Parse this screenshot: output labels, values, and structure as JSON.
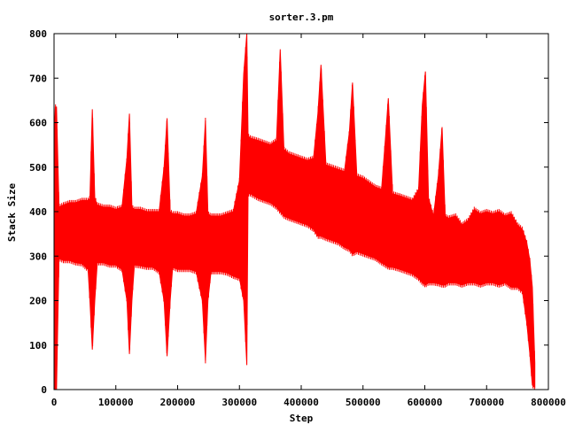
{
  "chart_data": {
    "type": "area",
    "title": "sorter.3.pm",
    "xlabel": "Step",
    "ylabel": "Stack Size",
    "xlim": [
      0,
      800000
    ],
    "ylim": [
      0,
      800
    ],
    "xticks": [
      0,
      100000,
      200000,
      300000,
      400000,
      500000,
      600000,
      700000,
      800000
    ],
    "yticks": [
      0,
      100,
      200,
      300,
      400,
      500,
      600,
      700,
      800
    ],
    "grid": false,
    "legend": "none",
    "color": "#ff0000",
    "series": [
      {
        "x": [
          0,
          2000,
          4000,
          8000,
          15000,
          25000,
          35000,
          45000,
          55000,
          58000,
          62000,
          66000,
          70000,
          80000,
          90000,
          100000,
          110000,
          118000,
          122000,
          126000,
          130000,
          140000,
          150000,
          160000,
          170000,
          178000,
          183000,
          188000,
          192000,
          200000,
          210000,
          220000,
          230000,
          240000,
          245000,
          249000,
          254000,
          260000,
          270000,
          280000,
          290000,
          300000,
          307000,
          312000,
          314000,
          318000,
          330000,
          340000,
          350000,
          360000,
          366000,
          372000,
          380000,
          390000,
          400000,
          410000,
          420000,
          427000,
          432000,
          440000,
          450000,
          460000,
          470000,
          478000,
          483000,
          490000,
          500000,
          510000,
          520000,
          530000,
          536000,
          541000,
          548000,
          560000,
          570000,
          580000,
          590000,
          596000,
          601000,
          606000,
          614000,
          622000,
          628000,
          633000,
          638000,
          650000,
          660000,
          670000,
          680000,
          690000,
          700000,
          710000,
          720000,
          730000,
          740000,
          750000,
          758000,
          765000,
          770000,
          774000,
          778000
        ],
        "min": [
          0,
          0,
          0,
          295,
          290,
          290,
          285,
          283,
          270,
          200,
          90,
          200,
          285,
          285,
          280,
          280,
          270,
          200,
          80,
          200,
          280,
          278,
          275,
          275,
          265,
          200,
          75,
          200,
          275,
          270,
          270,
          270,
          265,
          200,
          65,
          200,
          265,
          265,
          265,
          262,
          255,
          250,
          200,
          55,
          440,
          440,
          430,
          425,
          420,
          410,
          400,
          390,
          385,
          380,
          375,
          370,
          360,
          345,
          345,
          340,
          335,
          330,
          320,
          315,
          305,
          310,
          305,
          300,
          295,
          285,
          280,
          275,
          275,
          270,
          265,
          260,
          250,
          240,
          235,
          240,
          240,
          238,
          235,
          235,
          240,
          240,
          235,
          240,
          240,
          235,
          240,
          240,
          235,
          240,
          230,
          230,
          220,
          150,
          80,
          10,
          5
        ],
        "max": [
          555,
          635,
          635,
          410,
          415,
          420,
          420,
          425,
          425,
          430,
          630,
          430,
          415,
          410,
          410,
          405,
          410,
          520,
          620,
          410,
          405,
          405,
          400,
          400,
          400,
          500,
          610,
          400,
          395,
          395,
          390,
          390,
          395,
          480,
          605,
          395,
          390,
          390,
          390,
          395,
          400,
          470,
          710,
          800,
          570,
          565,
          560,
          555,
          550,
          560,
          765,
          540,
          530,
          525,
          520,
          515,
          520,
          620,
          730,
          505,
          500,
          495,
          490,
          580,
          690,
          480,
          475,
          465,
          455,
          450,
          560,
          655,
          440,
          435,
          430,
          425,
          450,
          640,
          715,
          430,
          390,
          480,
          590,
          390,
          385,
          390,
          370,
          380,
          405,
          395,
          400,
          395,
          400,
          390,
          395,
          370,
          360,
          330,
          290,
          230,
          60
        ]
      }
    ]
  }
}
